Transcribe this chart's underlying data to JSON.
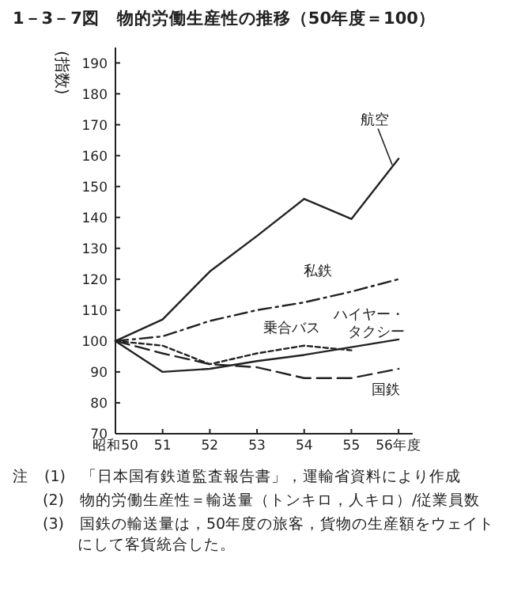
{
  "chart_data": {
    "type": "line",
    "title": "1－3－7図　物的労働生産性の推移（50年度＝100）",
    "ylabel": "(指数)",
    "x": [
      50,
      51,
      52,
      53,
      54,
      55,
      56
    ],
    "xlim": [
      50,
      56.3
    ],
    "ylim": [
      70,
      195
    ],
    "xticks": [
      {
        "value": 50,
        "label": "昭和50"
      },
      51,
      52,
      53,
      54,
      55,
      {
        "value": 56,
        "label": "56年度"
      }
    ],
    "yticks": [
      70,
      80,
      90,
      100,
      110,
      120,
      130,
      140,
      150,
      160,
      170,
      180,
      190
    ],
    "grid": false,
    "marker": "none",
    "series": [
      {
        "name": "航空",
        "color": "#222222",
        "line_style": "solid",
        "values": [
          100,
          107,
          122.5,
          134,
          146,
          139.5,
          159
        ]
      },
      {
        "name": "私鉄",
        "color": "#222222",
        "line_style": "dashdot",
        "values": [
          100,
          101.5,
          106.5,
          110,
          112.5,
          116,
          120
        ]
      },
      {
        "name": "乗合バス",
        "color": "#222222",
        "line_style": "dotted",
        "values": [
          100,
          98.5,
          92.5,
          96,
          98.5,
          97,
          null
        ]
      },
      {
        "name": "ハイヤー・タクシー",
        "color": "#222222",
        "line_style": "solid",
        "values": [
          100,
          90,
          91,
          93.5,
          95.5,
          98,
          100.5
        ]
      },
      {
        "name": "国鉄",
        "color": "#222222",
        "line_style": "dashed",
        "values": [
          100,
          96,
          92.5,
          91.5,
          88,
          88,
          91
        ]
      }
    ],
    "annotations": [
      "注　(1)　「日本国有鉄道監査報告書」，運輸省資料により作成",
      "(2)　物的労働生産性＝輸送量（トンキロ，人キロ）/従業員数",
      "(3)　国鉄の輸送量は，50年度の旅客，貨物の生産額をウェイトにして客貨統合した。"
    ]
  }
}
